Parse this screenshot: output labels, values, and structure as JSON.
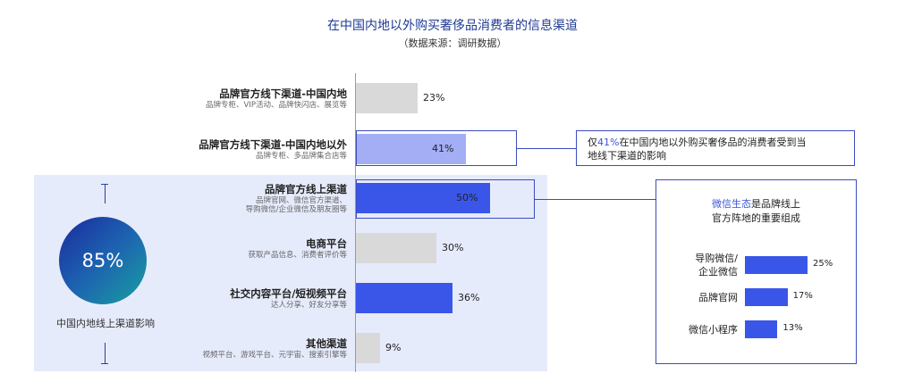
{
  "chart_data": {
    "type": "bar",
    "orientation": "horizontal",
    "title": "在中国内地以外购买奢侈品消费者的信息渠道",
    "subtitle": "（数据来源：调研数据）",
    "categories": [
      "品牌官方线下渠道-中国内地",
      "品牌官方线下渠道-中国内地以外",
      "品牌官方线上渠道",
      "电商平台",
      "社交内容平台/短视频平台",
      "其他渠道"
    ],
    "category_subtitles": [
      [
        "品牌专柜、VIP活动、品牌快闪店、展览等"
      ],
      [
        "品牌专柜、多品牌集合店等"
      ],
      [
        "品牌官网、微信官方渠道、",
        "导购微信/企业微信及朋友圈等"
      ],
      [
        "获取产品信息、消费者评价等"
      ],
      [
        "达人分享、好友分享等"
      ],
      [
        "视频平台、游戏平台、元宇宙、搜索引擎等"
      ]
    ],
    "values": [
      23,
      41,
      50,
      30,
      36,
      9
    ],
    "value_labels": [
      "23%",
      "41%",
      "50%",
      "30%",
      "36%",
      "9%"
    ],
    "value_unit": "%",
    "bar_colors": [
      "#d9d9d9",
      "#a3aef5",
      "#3a56e8",
      "#d9d9d9",
      "#3a56e8",
      "#d9d9d9"
    ],
    "xlim": [
      0,
      100
    ],
    "online_summary": {
      "value": "85%",
      "caption": "中国内地线上渠道影响"
    },
    "callout_offline": {
      "prefix": "仅",
      "highlight": "41%",
      "text_line1": "在中国内地以外购买奢侈品的消费者受到当",
      "text_line2": "地线下渠道的影响"
    },
    "wechat_panel": {
      "title_highlight": "微信生态",
      "title_rest": "是品牌线上",
      "title_line2": "官方阵地的重要组成",
      "type": "bar",
      "categories": [
        [
          "导购微信/",
          "企业微信"
        ],
        [
          "品牌官网"
        ],
        [
          "微信小程序"
        ]
      ],
      "values": [
        25,
        17,
        13
      ],
      "value_labels": [
        "25%",
        "17%",
        "13%"
      ],
      "bar_color": "#3a56e8"
    }
  }
}
